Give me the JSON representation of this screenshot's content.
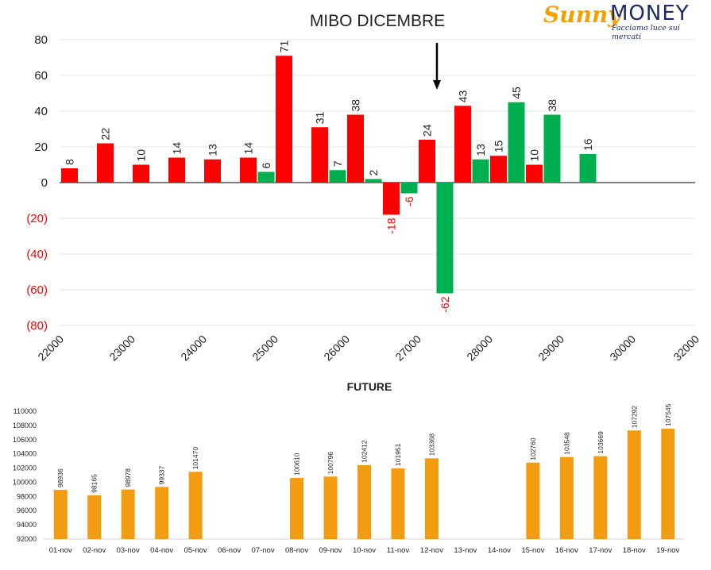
{
  "brand": {
    "name_part1": "Sunny",
    "name_part2": "MONEY",
    "tagline": "Facciamo luce sui mercati"
  },
  "colors": {
    "positive": "#ff0000",
    "negative": "#00b050",
    "future": "#f39c12",
    "axis_negative_label": "#ff0000",
    "grid": "#e6e6e6"
  },
  "chart_data": [
    {
      "type": "bar",
      "title": "MIBO DICEMBRE",
      "xlim": [
        22000,
        32000
      ],
      "x_ticks": [
        "22000",
        "23000",
        "24000",
        "25000",
        "26000",
        "27000",
        "28000",
        "29000",
        "30000",
        "32000"
      ],
      "ylim": [
        -80,
        80
      ],
      "y_ticks": [
        "80",
        "60",
        "40",
        "20",
        "0",
        "(20)",
        "(40)",
        "(60)",
        "(80)"
      ],
      "grid": true,
      "annotation": "down arrow above strike near 27400",
      "series": [
        {
          "color_key": "positive",
          "points": [
            {
              "strike": 22000,
              "value": 8,
              "label": "8"
            },
            {
              "strike": 22500,
              "value": 22,
              "label": "22"
            },
            {
              "strike": 23000,
              "value": 10,
              "label": "10"
            },
            {
              "strike": 23500,
              "value": 14,
              "label": "14"
            },
            {
              "strike": 24000,
              "value": 13,
              "label": "13"
            },
            {
              "strike": 24500,
              "value": 14,
              "label": "14"
            },
            {
              "strike": 25000,
              "value": 71,
              "label": "71"
            },
            {
              "strike": 25500,
              "value": 31,
              "label": "31"
            },
            {
              "strike": 26000,
              "value": 38,
              "label": "38"
            },
            {
              "strike": 26500,
              "value": -18,
              "label": "-18"
            },
            {
              "strike": 27000,
              "value": 24,
              "label": "24"
            },
            {
              "strike": 27500,
              "value": 43,
              "label": "43"
            },
            {
              "strike": 28000,
              "value": 15,
              "label": "15"
            },
            {
              "strike": 28500,
              "value": 10,
              "label": "10"
            }
          ]
        },
        {
          "color_key": "negative",
          "points": [
            {
              "strike": 24750,
              "value": 6,
              "label": "6"
            },
            {
              "strike": 25750,
              "value": 7,
              "label": "7"
            },
            {
              "strike": 26250,
              "value": 2,
              "label": "2"
            },
            {
              "strike": 26750,
              "value": -6,
              "label": "-6"
            },
            {
              "strike": 27250,
              "value": -62,
              "label": "-62"
            },
            {
              "strike": 27750,
              "value": 13,
              "label": "13"
            },
            {
              "strike": 28250,
              "value": 45,
              "label": "45"
            },
            {
              "strike": 28750,
              "value": 38,
              "label": "38"
            },
            {
              "strike": 29250,
              "value": 16,
              "label": "16"
            }
          ]
        }
      ]
    },
    {
      "type": "bar",
      "title": "FUTURE",
      "ylim": [
        92000,
        110000
      ],
      "y_ticks": [
        "110000",
        "108000",
        "106000",
        "104000",
        "102000",
        "100000",
        "98000",
        "96000",
        "94000",
        "92000"
      ],
      "categories": [
        "01-nov",
        "02-nov",
        "03-nov",
        "04-nov",
        "05-nov",
        "06-nov",
        "07-nov",
        "08-nov",
        "09-nov",
        "10-nov",
        "11-nov",
        "12-nov",
        "13-nov",
        "14-nov",
        "15-nov",
        "16-nov",
        "17-nov",
        "18-nov",
        "19-nov"
      ],
      "values": [
        98936,
        98165,
        98978,
        99337,
        101470,
        null,
        null,
        100610,
        100796,
        102412,
        101951,
        103368,
        null,
        null,
        102760,
        103548,
        103669,
        107292,
        107545
      ],
      "labels": [
        "98936",
        "98165",
        "98978",
        "99337",
        "101470",
        "",
        "",
        "100610",
        "100796",
        "102412",
        "101951",
        "103368",
        "",
        "",
        "102760",
        "103548",
        "103669",
        "107292",
        "107545"
      ]
    }
  ]
}
